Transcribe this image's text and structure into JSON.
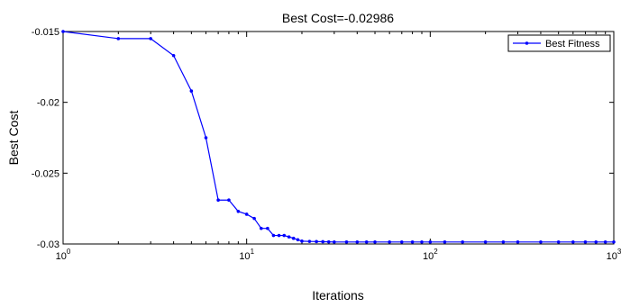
{
  "chart_data": {
    "type": "line",
    "title": "Best Cost=-0.02986",
    "xlabel": "Iterations",
    "ylabel": "Best Cost",
    "x_scale": "log",
    "xlim": [
      1,
      1000
    ],
    "ylim": [
      -0.03,
      -0.015
    ],
    "x_ticks": [
      {
        "value": 1,
        "base": "10",
        "exp": "0"
      },
      {
        "value": 10,
        "base": "10",
        "exp": "1"
      },
      {
        "value": 100,
        "base": "10",
        "exp": "2"
      },
      {
        "value": 1000,
        "base": "10",
        "exp": "3"
      }
    ],
    "y_ticks": [
      {
        "value": -0.015,
        "label": "-0.015"
      },
      {
        "value": -0.02,
        "label": "-0.02"
      },
      {
        "value": -0.025,
        "label": "-0.025"
      },
      {
        "value": -0.03,
        "label": "-0.03"
      }
    ],
    "grid": false,
    "legend_position": "top-right",
    "series": [
      {
        "name": "Best Fitness",
        "color": "#0000ff",
        "marker": "dot",
        "x": [
          1,
          2,
          3,
          4,
          5,
          6,
          7,
          8,
          9,
          10,
          11,
          12,
          13,
          14,
          15,
          16,
          17,
          18,
          19,
          20,
          22,
          24,
          26,
          28,
          30,
          35,
          40,
          45,
          50,
          60,
          70,
          80,
          90,
          100,
          120,
          150,
          200,
          250,
          300,
          400,
          500,
          600,
          700,
          800,
          900,
          1000
        ],
        "y": [
          -0.015,
          -0.0155,
          -0.0155,
          -0.0167,
          -0.0192,
          -0.0225,
          -0.0269,
          -0.0269,
          -0.0277,
          -0.0279,
          -0.0282,
          -0.0289,
          -0.0289,
          -0.0294,
          -0.0294,
          -0.0294,
          -0.0295,
          -0.0296,
          -0.0297,
          -0.0298,
          -0.02982,
          -0.02983,
          -0.02984,
          -0.02985,
          -0.02986,
          -0.02986,
          -0.02986,
          -0.02986,
          -0.02986,
          -0.02986,
          -0.02986,
          -0.02986,
          -0.02986,
          -0.02986,
          -0.02986,
          -0.02986,
          -0.02986,
          -0.02986,
          -0.02986,
          -0.02986,
          -0.02986,
          -0.02986,
          -0.02986,
          -0.02986,
          -0.02986,
          -0.02986
        ]
      }
    ]
  }
}
